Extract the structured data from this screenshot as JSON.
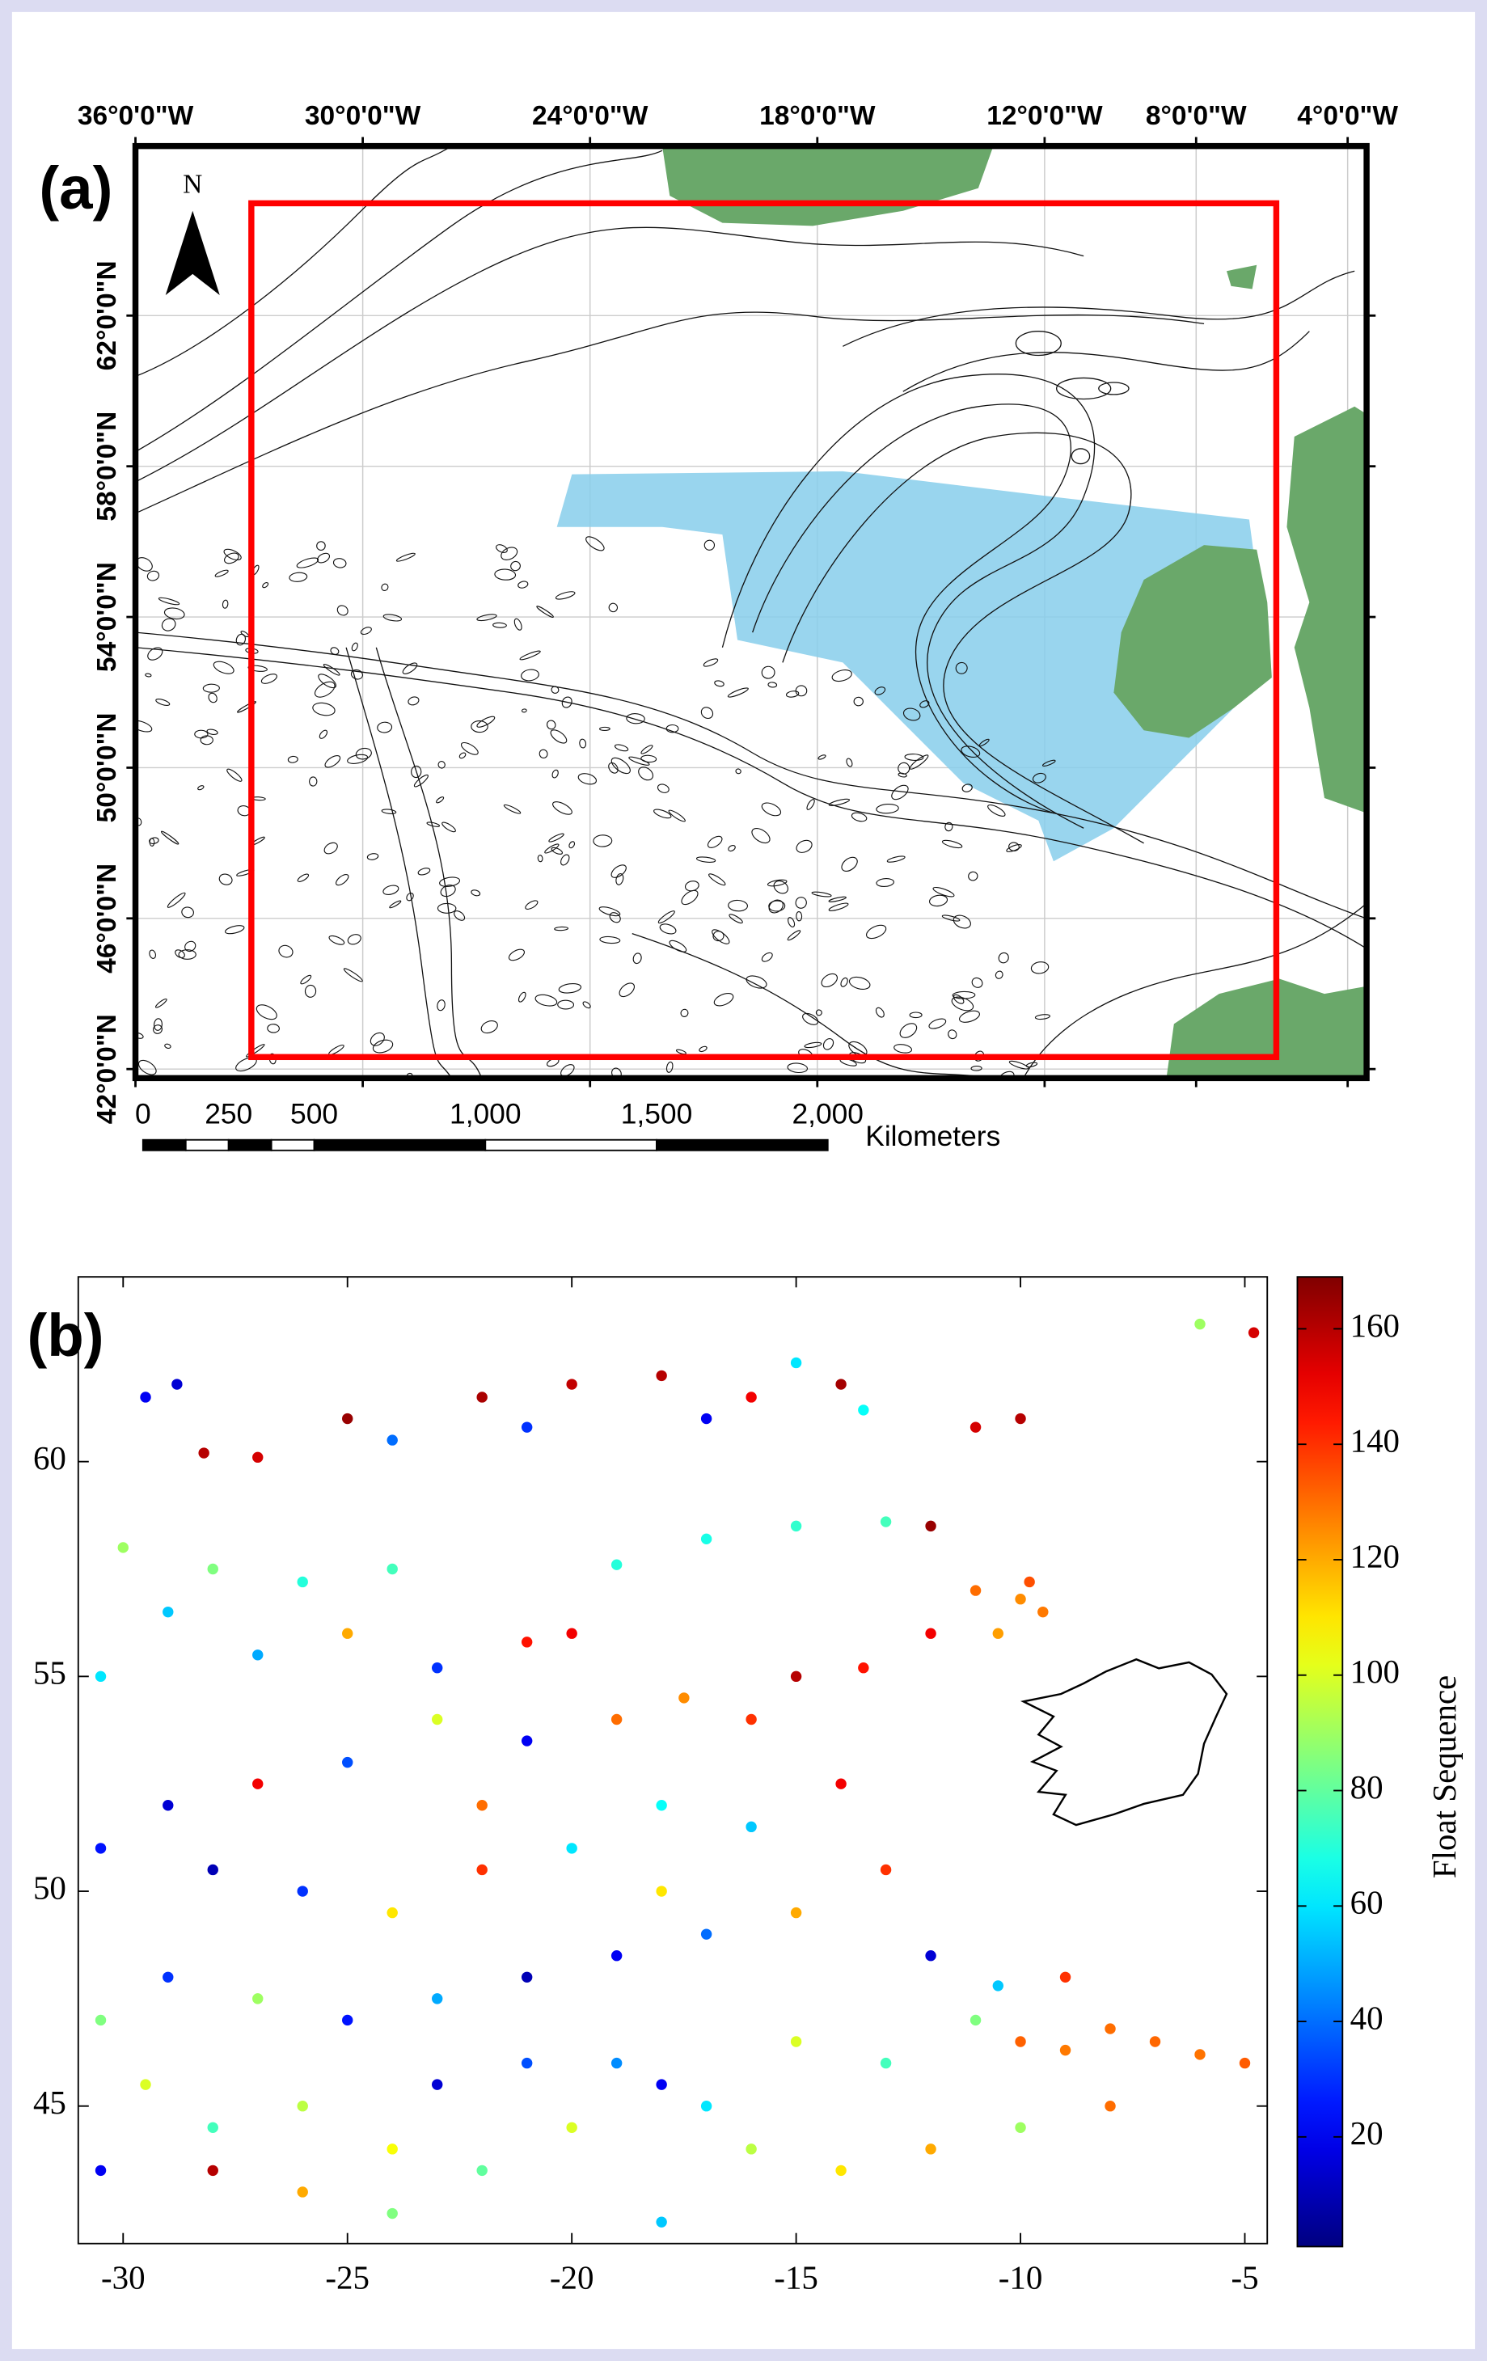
{
  "chart_data": [
    {
      "type": "map",
      "panel_label": "(a)",
      "north_label": "N",
      "xlim": [
        -36,
        -3.5
      ],
      "ylim": [
        41.76,
        66.5
      ],
      "xticks": [
        {
          "value": -36,
          "label": "36°0'0\"W"
        },
        {
          "value": -30,
          "label": "30°0'0\"W"
        },
        {
          "value": -24,
          "label": "24°0'0\"W"
        },
        {
          "value": -18,
          "label": "18°0'0\"W"
        },
        {
          "value": -12,
          "label": "12°0'0\"W"
        },
        {
          "value": -8,
          "label": "8°0'0\"W"
        },
        {
          "value": -4,
          "label": "4°0'0\"W"
        }
      ],
      "yticks": [
        {
          "value": 42,
          "label": "42°0'0\"N"
        },
        {
          "value": 46,
          "label": "46°0'0\"N"
        },
        {
          "value": 50,
          "label": "50°0'0\"N"
        },
        {
          "value": 54,
          "label": "54°0'0\"N"
        },
        {
          "value": 58,
          "label": "58°0'0\"N"
        },
        {
          "value": 62,
          "label": "62°0'0\"N"
        }
      ],
      "scale_bar": {
        "ticks": [
          0,
          250,
          500,
          {
            "value": 1000,
            "label": "1,000"
          },
          {
            "value": 1500,
            "label": "1,500"
          },
          {
            "value": 2000,
            "label": "2,000"
          }
        ],
        "unit": "Kilometers"
      }
    },
    {
      "type": "scatter",
      "panel_label": "(b)",
      "colormap": "jet",
      "xlim": [
        -31,
        -4.5
      ],
      "ylim": [
        41.8,
        64.3
      ],
      "xticks": [
        -30,
        -25,
        -20,
        -15,
        -10,
        -5
      ],
      "yticks": [
        45,
        50,
        55,
        60
      ],
      "x": [
        -29.5,
        -28.8,
        -28.2,
        -27,
        -25,
        -22,
        -20,
        -18,
        -16,
        -14,
        -24,
        -21,
        -17,
        -15,
        -13.5,
        -11,
        -10,
        -30,
        -28,
        -26,
        -24,
        -30.5,
        -29,
        -27,
        -25,
        -23,
        -21,
        -19,
        -17,
        -15,
        -13,
        -12,
        -11,
        -10,
        -9.5,
        -10.5,
        -9.8,
        -12,
        -13.5,
        -15,
        -16,
        -17.5,
        -19,
        -21,
        -23,
        -25,
        -27,
        -29,
        -30.5,
        -28,
        -26,
        -24,
        -22,
        -20,
        -18,
        -16,
        -14,
        -13,
        -15,
        -17,
        -19,
        -21,
        -23,
        -25,
        -27,
        -29,
        -30.5,
        -29.5,
        -28,
        -26,
        -24,
        -22,
        -20,
        -18,
        -16,
        -14,
        -12,
        -10,
        -8,
        -11,
        -10,
        -9,
        -8,
        -7,
        -6,
        -5,
        -10.5,
        -13,
        -15,
        -17,
        -19,
        -21,
        -23,
        -26,
        -28,
        -30.5,
        -24,
        -18,
        -12,
        -9,
        -6,
        -4.8,
        -20,
        -22,
        -18
      ],
      "y": [
        61.5,
        61.8,
        60.2,
        60.1,
        61,
        61.5,
        61.8,
        62,
        61.5,
        61.8,
        60.5,
        60.8,
        61,
        62.3,
        61.2,
        60.8,
        61,
        58,
        57.5,
        57.2,
        57.5,
        55,
        56.5,
        55.5,
        56,
        55.2,
        55.8,
        57.6,
        58.2,
        58.5,
        58.6,
        58.5,
        57,
        56.8,
        56.5,
        56,
        57.2,
        56,
        55.2,
        55,
        54,
        54.5,
        54,
        53.5,
        54,
        53,
        52.5,
        52,
        51,
        50.5,
        50,
        49.5,
        50.5,
        51,
        52,
        51.5,
        52.5,
        50.5,
        49.5,
        49,
        48.5,
        48,
        47.5,
        47,
        47.5,
        48,
        47,
        45.5,
        44.5,
        45,
        44,
        43.5,
        44.5,
        45.5,
        44,
        43.5,
        44,
        44.5,
        45,
        47,
        46.5,
        46.3,
        46.8,
        46.5,
        46.2,
        46,
        47.8,
        46,
        46.5,
        45,
        46,
        46,
        45.5,
        43,
        43.5,
        43.5,
        42.5,
        42.3,
        48.5,
        48,
        63.2,
        63,
        56,
        52,
        50
      ],
      "color_values": [
        20,
        15,
        160,
        155,
        165,
        162,
        158,
        160,
        150,
        163,
        40,
        30,
        20,
        60,
        65,
        155,
        160,
        90,
        85,
        70,
        75,
        60,
        55,
        50,
        120,
        30,
        145,
        70,
        68,
        72,
        75,
        165,
        130,
        125,
        128,
        122,
        135,
        150,
        145,
        160,
        140,
        125,
        130,
        20,
        100,
        35,
        150,
        15,
        25,
        10,
        30,
        110,
        140,
        60,
        65,
        55,
        150,
        140,
        120,
        40,
        20,
        10,
        50,
        25,
        90,
        30,
        85,
        100,
        75,
        95,
        105,
        80,
        100,
        20,
        95,
        110,
        120,
        90,
        130,
        85,
        132,
        128,
        130,
        131,
        129,
        133,
        55,
        75,
        100,
        60,
        45,
        35,
        15,
        120,
        160,
        20,
        85,
        55,
        15,
        140,
        90,
        155,
        150,
        130,
        110
      ],
      "colorbar": {
        "label": "Float Sequence",
        "lim": [
          1,
          169
        ],
        "ticks": [
          20,
          40,
          60,
          80,
          100,
          120,
          140,
          160
        ]
      }
    }
  ]
}
